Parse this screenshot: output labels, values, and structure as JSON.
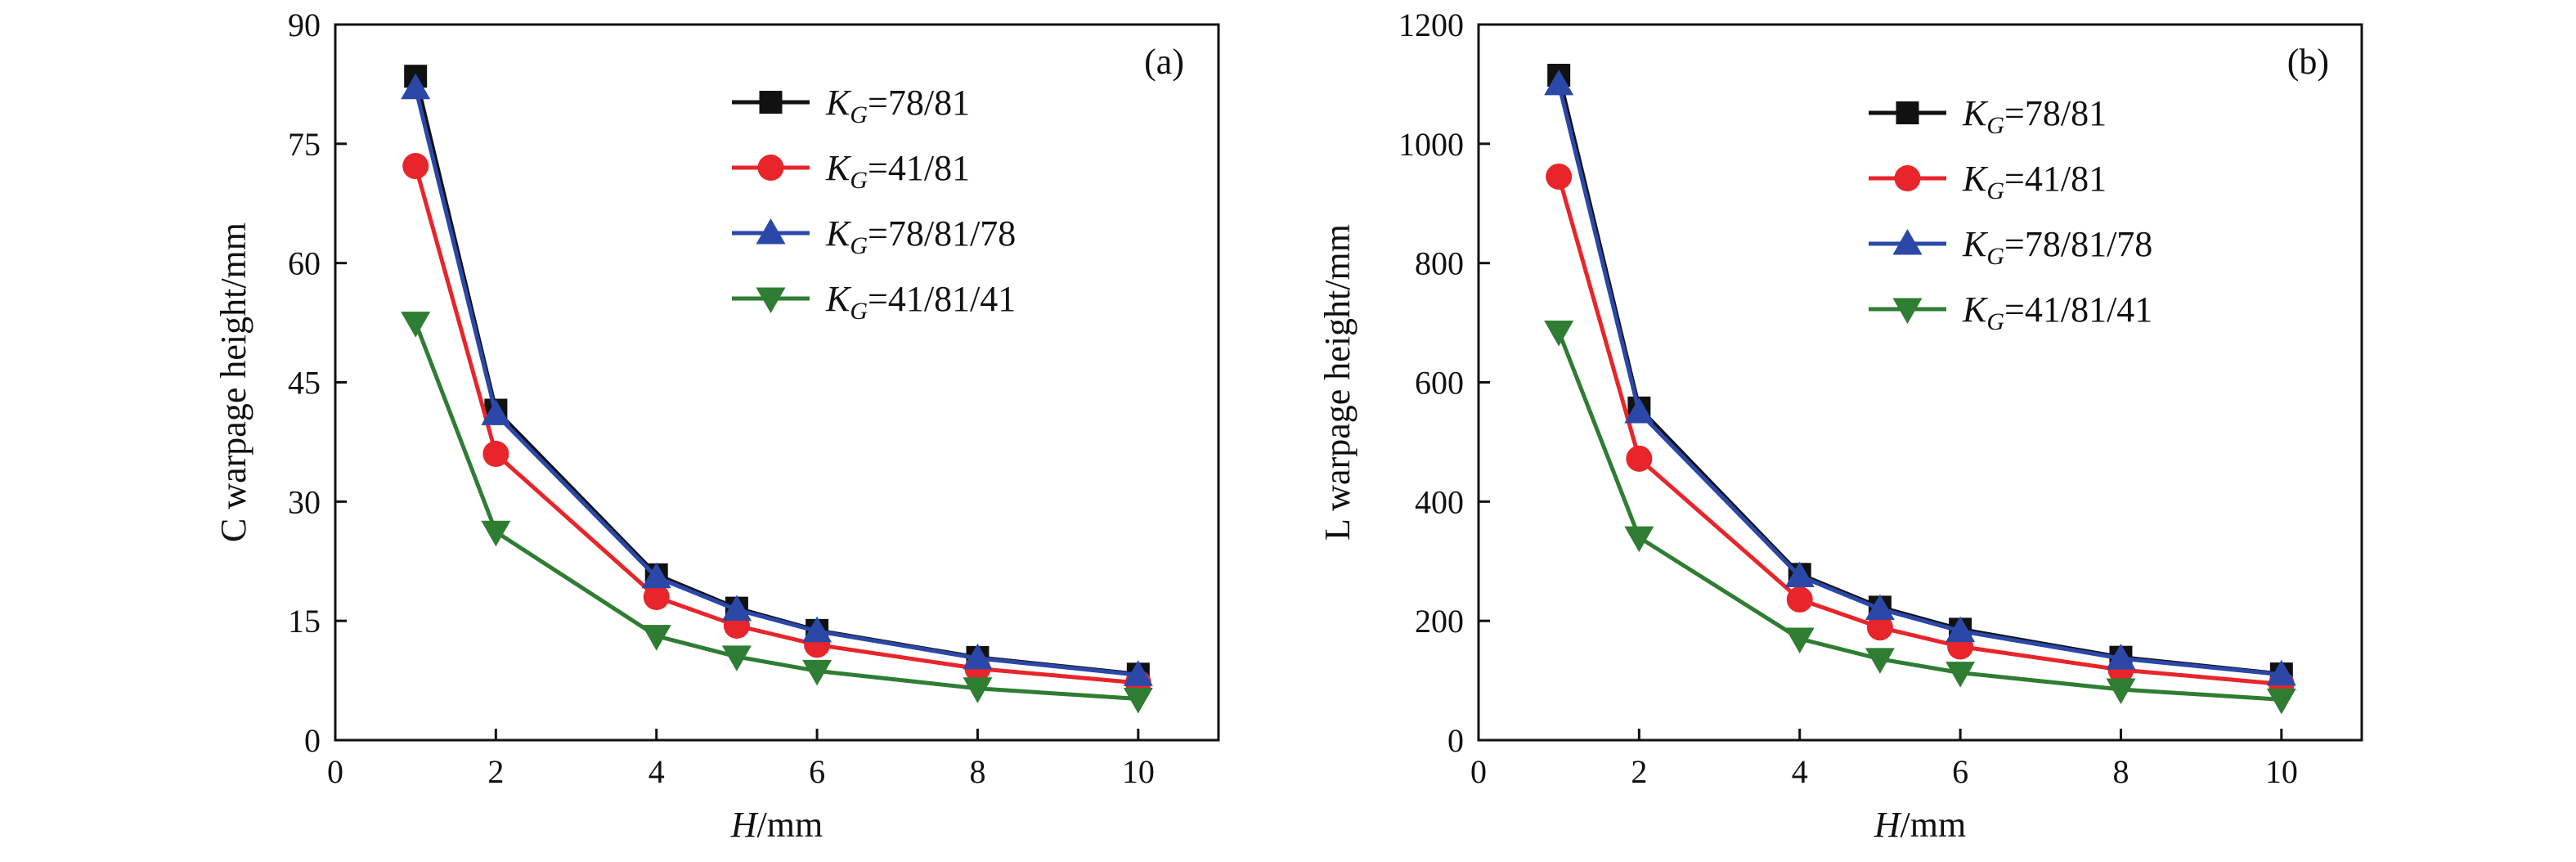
{
  "chart_data": [
    {
      "type": "line",
      "panel_label": "(a)",
      "xlabel_italic": "H",
      "xlabel_rest": "/mm",
      "ylabel": "C warpage height/mm",
      "xlim": [
        0,
        11
      ],
      "ylim": [
        0,
        90
      ],
      "xticks": [
        0,
        2,
        4,
        6,
        8,
        10
      ],
      "yticks": [
        0,
        15,
        30,
        45,
        60,
        75,
        90
      ],
      "legend_position": "upper-right",
      "x": [
        1,
        2,
        4,
        5,
        6,
        8,
        10
      ],
      "series": [
        {
          "name": "K_G=78/81",
          "label_main": "K",
          "label_sub": "G",
          "label_rest": "=78/81",
          "color": "#111111",
          "marker": "square",
          "values": [
            83.5,
            41.5,
            20.8,
            16.6,
            13.8,
            10.4,
            8.3
          ]
        },
        {
          "name": "K_G=41/81",
          "label_main": "K",
          "label_sub": "G",
          "label_rest": "=41/81",
          "color": "#e8252a",
          "marker": "circle",
          "values": [
            72.2,
            36.0,
            18.0,
            14.4,
            12.0,
            9.0,
            7.2
          ]
        },
        {
          "name": "K_G=78/81/78",
          "label_main": "K",
          "label_sub": "G",
          "label_rest": "=78/81/78",
          "color": "#2b48a8",
          "marker": "triangle-up",
          "values": [
            82.0,
            41.0,
            20.5,
            16.4,
            13.7,
            10.3,
            8.2
          ]
        },
        {
          "name": "K_G=41/81/41",
          "label_main": "K",
          "label_sub": "G",
          "label_rest": "=41/81/41",
          "color": "#2e7d32",
          "marker": "triangle-down",
          "values": [
            52.5,
            26.2,
            13.1,
            10.5,
            8.7,
            6.5,
            5.2
          ]
        }
      ]
    },
    {
      "type": "line",
      "panel_label": "(b)",
      "xlabel_italic": "H",
      "xlabel_rest": "/mm",
      "ylabel": "L warpage height/mm",
      "xlim": [
        0,
        11
      ],
      "ylim": [
        0,
        1200
      ],
      "xticks": [
        0,
        2,
        4,
        6,
        8,
        10
      ],
      "yticks": [
        0,
        200,
        400,
        600,
        800,
        1000,
        1200
      ],
      "legend_position": "upper-right",
      "x": [
        1,
        2,
        4,
        5,
        6,
        8,
        10
      ],
      "series": [
        {
          "name": "K_G=78/81",
          "label_main": "K",
          "label_sub": "G",
          "label_rest": "=78/81",
          "color": "#111111",
          "marker": "square",
          "values": [
            1115,
            557,
            278,
            223,
            186,
            139,
            111
          ]
        },
        {
          "name": "K_G=41/81",
          "label_main": "K",
          "label_sub": "G",
          "label_rest": "=41/81",
          "color": "#e8252a",
          "marker": "circle",
          "values": [
            945,
            472,
            236,
            189,
            157,
            118,
            94
          ]
        },
        {
          "name": "K_G=78/81/78",
          "label_main": "K",
          "label_sub": "G",
          "label_rest": "=78/81/78",
          "color": "#2b48a8",
          "marker": "triangle-up",
          "values": [
            1100,
            550,
            275,
            220,
            183,
            137,
            110
          ]
        },
        {
          "name": "K_G=41/81/41",
          "label_main": "K",
          "label_sub": "G",
          "label_rest": "=41/81/41",
          "color": "#2e7d32",
          "marker": "triangle-down",
          "values": [
            685,
            340,
            170,
            136,
            113,
            85,
            68
          ]
        }
      ]
    }
  ]
}
